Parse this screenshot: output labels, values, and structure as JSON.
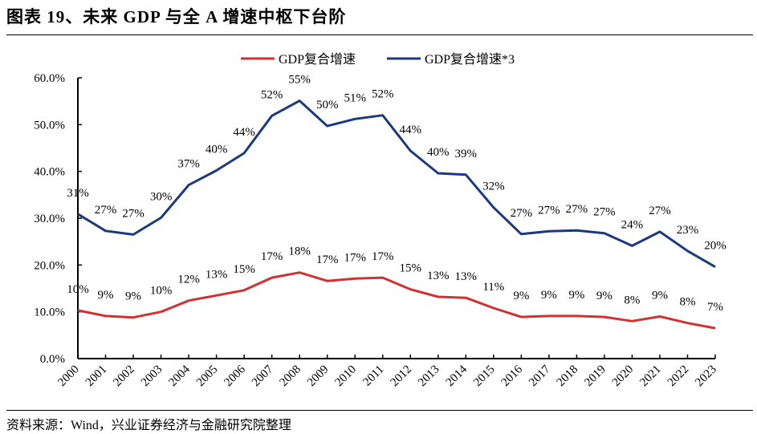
{
  "header": {
    "title": "图表 19、未来 GDP 与全 A 增速中枢下台阶"
  },
  "footer": {
    "source": "资料来源：Wind，兴业证券经济与金融研究院整理"
  },
  "chart_data": {
    "type": "line",
    "title": "图表 19、未来 GDP 与全 A 增速中枢下台阶",
    "xlabel": "",
    "ylabel": "",
    "ylim": [
      0,
      60
    ],
    "yticks": [
      "0.0%",
      "10.0%",
      "20.0%",
      "30.0%",
      "40.0%",
      "50.0%",
      "60.0%"
    ],
    "grid": false,
    "legend_position": "top-center",
    "categories": [
      "2000",
      "2001",
      "2002",
      "2003",
      "2004",
      "2005",
      "2006",
      "2007",
      "2008",
      "2009",
      "2010",
      "2011",
      "2012",
      "2013",
      "2014",
      "2015",
      "2016",
      "2017",
      "2018",
      "2019",
      "2020",
      "2021",
      "2022",
      "2023"
    ],
    "series": [
      {
        "name": "GDP复合增速",
        "color": "#d03234",
        "values": [
          10.3,
          9.1,
          8.8,
          10.0,
          12.4,
          13.5,
          14.6,
          17.3,
          18.4,
          16.6,
          17.1,
          17.3,
          14.8,
          13.2,
          13.0,
          10.8,
          8.9,
          9.1,
          9.1,
          8.9,
          8.0,
          9.0,
          7.6,
          6.5
        ],
        "labels": [
          "10%",
          "9%",
          "9%",
          "10%",
          "12%",
          "13%",
          "15%",
          "17%",
          "18%",
          "17%",
          "17%",
          "17%",
          "15%",
          "13%",
          "13%",
          "11%",
          "9%",
          "9%",
          "9%",
          "9%",
          "8%",
          "9%",
          "8%",
          "7%"
        ]
      },
      {
        "name": "GDP复合增速*3",
        "color": "#1b3a7e",
        "values": [
          30.9,
          27.3,
          26.5,
          30.1,
          37.1,
          40.2,
          43.9,
          51.9,
          55.1,
          49.7,
          51.2,
          52.0,
          44.4,
          39.6,
          39.3,
          32.3,
          26.6,
          27.2,
          27.4,
          26.8,
          24.1,
          27.1,
          23.0,
          19.6
        ],
        "labels": [
          "31%",
          "27%",
          "27%",
          "30%",
          "37%",
          "40%",
          "44%",
          "52%",
          "55%",
          "50%",
          "51%",
          "52%",
          "44%",
          "40%",
          "39%",
          "32%",
          "27%",
          "27%",
          "27%",
          "27%",
          "24%",
          "27%",
          "23%",
          "20%"
        ]
      }
    ]
  }
}
